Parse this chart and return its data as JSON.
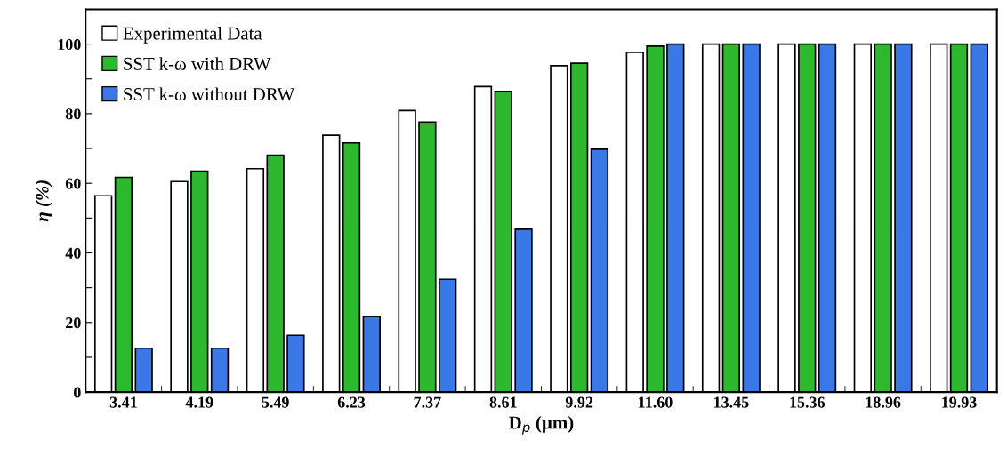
{
  "chart_data": {
    "type": "bar",
    "xlabel": "D$_{p}$ (µm)",
    "ylabel": "η (%)",
    "categories": [
      "3.41",
      "4.19",
      "5.49",
      "6.23",
      "7.37",
      "8.61",
      "9.92",
      "11.60",
      "13.45",
      "15.36",
      "18.96",
      "19.93"
    ],
    "series": [
      {
        "name": "Experimental Data",
        "color": "#ffffff",
        "values": [
          56.4,
          60.5,
          64.2,
          73.8,
          80.9,
          87.8,
          93.8,
          97.6,
          100,
          100,
          100,
          100
        ]
      },
      {
        "name": "SST k-ω with DRW",
        "color": "#2db82d",
        "values": [
          61.7,
          63.5,
          68.1,
          71.6,
          77.6,
          86.4,
          94.5,
          99.4,
          100,
          100,
          100,
          100
        ]
      },
      {
        "name": "SST k-ω without DRW",
        "color": "#3a78e8",
        "values": [
          12.6,
          12.6,
          16.3,
          21.7,
          32.4,
          46.8,
          69.8,
          100,
          100,
          100,
          100,
          100
        ]
      }
    ],
    "ylim": [
      0,
      110
    ],
    "yticks": [
      0,
      {
        "value": 10,
        "label": null
      },
      20,
      {
        "value": 30,
        "label": null
      },
      40,
      {
        "value": 50,
        "label": null
      },
      60,
      {
        "value": 70,
        "label": null
      },
      80,
      {
        "value": 90,
        "label": null
      },
      100
    ],
    "grid": false,
    "legend": "top left"
  }
}
